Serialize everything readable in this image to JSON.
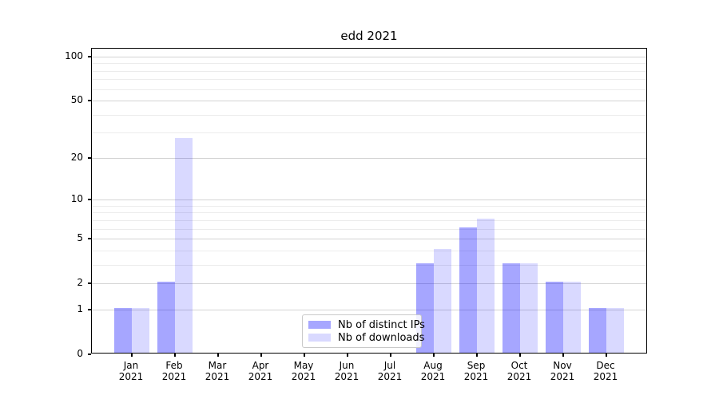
{
  "figure": {
    "kind": "matplotlib-style static chart image",
    "background_color": "#ffffff"
  },
  "chart_data": {
    "type": "bar",
    "title": "edd 2021",
    "categories": [
      "Jan",
      "Feb",
      "Mar",
      "Apr",
      "May",
      "Jun",
      "Jul",
      "Aug",
      "Sep",
      "Oct",
      "Nov",
      "Dec"
    ],
    "year": "2021",
    "series": [
      {
        "name": "Nb of distinct IPs",
        "color_hex": "#a6a6ff",
        "color_rgba": "rgba(0,0,255,0.35)",
        "values": [
          1,
          2,
          0,
          0,
          0,
          0,
          0,
          3,
          6,
          3,
          2,
          1
        ]
      },
      {
        "name": "Nb of downloads",
        "color_hex": "#d9d9ff",
        "color_rgba": "rgba(0,0,255,0.15)",
        "values": [
          1,
          27,
          0,
          0,
          0,
          0,
          0,
          4,
          7,
          3,
          2,
          1
        ]
      }
    ],
    "xlabel": "",
    "ylabel": "",
    "yscale": "log1p",
    "ylim": [
      0,
      112
    ],
    "yticks": [
      0,
      1,
      2,
      5,
      10,
      20,
      50,
      100
    ],
    "minor_yticks": [
      3,
      4,
      6,
      7,
      8,
      9,
      30,
      40,
      60,
      70,
      80,
      90
    ],
    "grid": "horizontal, major and minor",
    "legend": {
      "position": "lower center",
      "entries": [
        "Nb of distinct IPs",
        "Nb of downloads"
      ]
    },
    "grid_major_color": "#d4d4d4",
    "grid_minor_color": "#ececec",
    "spine_color": "#000000"
  }
}
